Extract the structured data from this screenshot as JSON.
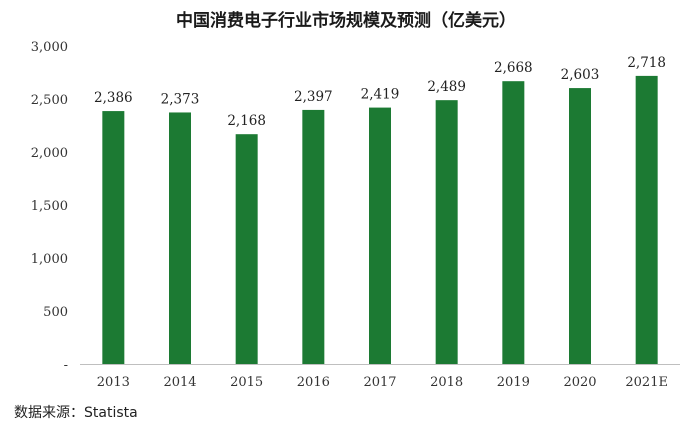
{
  "title": "中国消费电子行业市场规模及预测（亿美元）",
  "source": "数据来源：Statista",
  "chart_data": {
    "type": "bar",
    "title": "中国消费电子行业市场规模及预测（亿美元）",
    "categories": [
      "2013",
      "2014",
      "2015",
      "2016",
      "2017",
      "2018",
      "2019",
      "2020",
      "2021E"
    ],
    "values": [
      2386,
      2373,
      2168,
      2397,
      2419,
      2489,
      2668,
      2603,
      2718
    ],
    "data_labels": [
      "2,386",
      "2,373",
      "2,168",
      "2,397",
      "2,419",
      "2,489",
      "2,668",
      "2,603",
      "2,718"
    ],
    "ylim": [
      0,
      3000
    ],
    "yticks": [
      0,
      500,
      1000,
      1500,
      2000,
      2500,
      3000
    ],
    "ytick_labels": [
      "-",
      "500",
      "1,000",
      "1,500",
      "2,000",
      "2,500",
      "3,000"
    ],
    "xlabel": "",
    "ylabel": "",
    "grid": false,
    "bar_color": "#1c7a33"
  }
}
